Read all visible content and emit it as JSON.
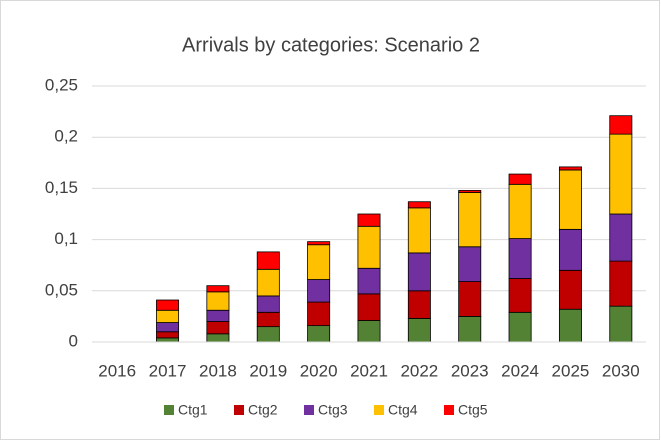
{
  "chart_data": {
    "type": "stacked_bar",
    "title": "Arrivals by categories: Scenario 2",
    "categories": [
      "2016",
      "2017",
      "2018",
      "2019",
      "2020",
      "2021",
      "2022",
      "2023",
      "2024",
      "2025",
      "2030"
    ],
    "series": [
      {
        "name": "Ctg1",
        "color": "#548235",
        "values": [
          0,
          0.004,
          0.008,
          0.015,
          0.016,
          0.021,
          0.023,
          0.025,
          0.029,
          0.032,
          0.035
        ]
      },
      {
        "name": "Ctg2",
        "color": "#c00000",
        "values": [
          0,
          0.006,
          0.012,
          0.014,
          0.023,
          0.026,
          0.027,
          0.034,
          0.033,
          0.038,
          0.044
        ]
      },
      {
        "name": "Ctg3",
        "color": "#7030a0",
        "values": [
          0,
          0.009,
          0.011,
          0.016,
          0.022,
          0.025,
          0.037,
          0.034,
          0.039,
          0.04,
          0.046
        ]
      },
      {
        "name": "Ctg4",
        "color": "#ffc000",
        "values": [
          0,
          0.012,
          0.018,
          0.026,
          0.034,
          0.041,
          0.044,
          0.053,
          0.053,
          0.058,
          0.078
        ]
      },
      {
        "name": "Ctg5",
        "color": "#ff0000",
        "values": [
          0,
          0.01,
          0.006,
          0.017,
          0.003,
          0.012,
          0.006,
          0.002,
          0.01,
          0.003,
          0.018
        ]
      }
    ],
    "ylim": [
      0,
      0.25
    ],
    "yticks": [
      0,
      {
        "value": 0.05,
        "label": "0,05"
      },
      {
        "value": 0.1,
        "label": "0,1"
      },
      {
        "value": 0.15,
        "label": "0,15"
      },
      {
        "value": 0.2,
        "label": "0,2"
      },
      {
        "value": 0.25,
        "label": "0,25"
      }
    ],
    "grid": true,
    "legend": "bottom"
  }
}
